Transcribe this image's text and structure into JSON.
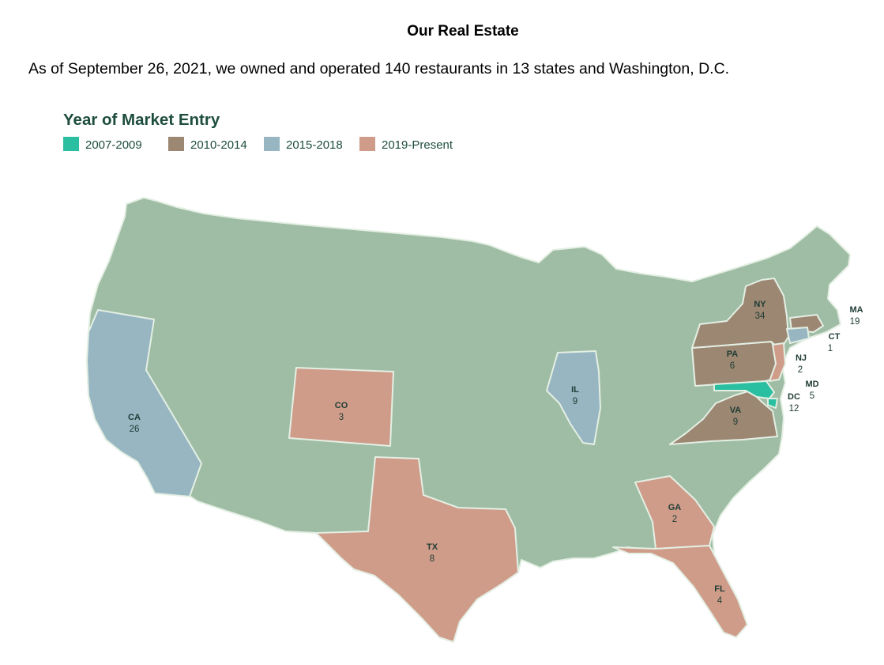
{
  "header": {
    "title": "Our Real Estate",
    "intro": "As of September 26, 2021, we owned and operated 140 restaurants in 13 states and Washington, D.C."
  },
  "map": {
    "legend_title": "Year of Market Entry",
    "legend": [
      {
        "label": "2007-2009",
        "color": "#2bbfa2"
      },
      {
        "label": "2010-2014",
        "color": "#9c8773"
      },
      {
        "label": "2015-2018",
        "color": "#97b6c2"
      },
      {
        "label": "2019-Present",
        "color": "#cf9c8a"
      }
    ],
    "base_color": "#9fbda4",
    "states": {
      "CA": {
        "code": "CA",
        "count": "26",
        "period": "2015-2018"
      },
      "CO": {
        "code": "CO",
        "count": "3",
        "period": "2019-Present"
      },
      "TX": {
        "code": "TX",
        "count": "8",
        "period": "2019-Present"
      },
      "IL": {
        "code": "IL",
        "count": "9",
        "period": "2015-2018"
      },
      "GA": {
        "code": "GA",
        "count": "2",
        "period": "2019-Present"
      },
      "FL": {
        "code": "FL",
        "count": "4",
        "period": "2019-Present"
      },
      "VA": {
        "code": "VA",
        "count": "9",
        "period": "2010-2014"
      },
      "PA": {
        "code": "PA",
        "count": "6",
        "period": "2010-2014"
      },
      "NY": {
        "code": "NY",
        "count": "34",
        "period": "2010-2014"
      },
      "MA": {
        "code": "MA",
        "count": "19",
        "period": "2010-2014"
      },
      "CT": {
        "code": "CT",
        "count": "1",
        "period": "2015-2018"
      },
      "NJ": {
        "code": "NJ",
        "count": "2",
        "period": "2019-Present"
      },
      "MD": {
        "code": "MD",
        "count": "5",
        "period": "2007-2009"
      },
      "DC": {
        "code": "DC",
        "count": "12",
        "period": "2007-2009"
      }
    }
  }
}
